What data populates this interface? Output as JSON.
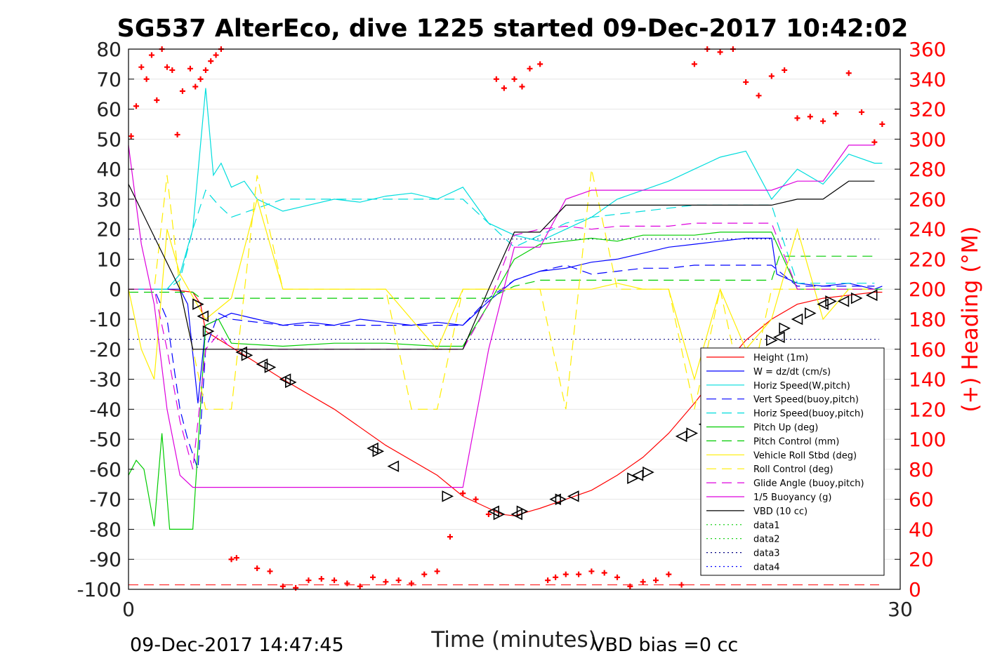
{
  "chart_data": {
    "type": "line",
    "title": "SG537 AlterEco, dive 1225 started 09-Dec-2017 10:42:02",
    "xlabel": "Time (minutes)",
    "ylabel": "",
    "ylabel_right": "(+) Heading (°M)",
    "xlim": [
      0,
      30
    ],
    "ylim": [
      -100,
      80
    ],
    "ylim_right": [
      0,
      360
    ],
    "x_ticks": [
      "0",
      "30"
    ],
    "y_ticks": [
      "80",
      "70",
      "60",
      "50",
      "40",
      "30",
      "20",
      "10",
      "0",
      "-10",
      "-20",
      "-30",
      "-40",
      "-50",
      "-60",
      "-70",
      "-80",
      "-90",
      "-100"
    ],
    "y_ticks_right": [
      "360",
      "340",
      "320",
      "300",
      "280",
      "260",
      "240",
      "220",
      "200",
      "180",
      "160",
      "140",
      "120",
      "100",
      "80",
      "60",
      "40",
      "20",
      "0"
    ],
    "grid": "horizontal",
    "legend_position": "bottom-right",
    "footer_left": "09-Dec-2017 14:47:45",
    "footer_right": "VBD bias =0 cc",
    "reference_lines": [
      16.7,
      -16.7,
      -98.5
    ],
    "series": [
      {
        "name": "Height (1m)",
        "color": "#ff0000",
        "style": "solid",
        "x": [
          0,
          1.5,
          2.5,
          2.8,
          3,
          4.5,
          6,
          8,
          10,
          12,
          13,
          14,
          14.5,
          15,
          16,
          17,
          18,
          19,
          20,
          21,
          22,
          23,
          24,
          25,
          26,
          27,
          28,
          29,
          29.3
        ],
        "y": [
          0,
          0,
          -1,
          -5,
          -14,
          -22,
          -30,
          -40,
          -52,
          -62,
          -69,
          -73,
          -75,
          -75.5,
          -73,
          -70,
          -67,
          -62,
          -56,
          -48,
          -38,
          -27,
          -17,
          -10,
          -5,
          -3,
          -2,
          -1,
          -1
        ]
      },
      {
        "name": "W = dz/dt (cm/s)",
        "color": "#0000ff",
        "style": "solid",
        "x": [
          0,
          1,
          2,
          2.3,
          2.7,
          3,
          3.5,
          4,
          5,
          6,
          7,
          8,
          9,
          10,
          11,
          12,
          13,
          14,
          15,
          16,
          17,
          18,
          19,
          20,
          21,
          22,
          23,
          24,
          25,
          25.2,
          26,
          27,
          28,
          29,
          29.3
        ],
        "y": [
          0,
          0,
          0,
          -5,
          -38,
          -12,
          -10,
          -8,
          -10,
          -12,
          -11,
          -12,
          -10,
          -11,
          -12,
          -11,
          -12,
          -4,
          3,
          6,
          7,
          9,
          10,
          12,
          14,
          15,
          16,
          17,
          17,
          5,
          2,
          1,
          2,
          0,
          1
        ]
      },
      {
        "name": "Horiz Speed(W,pitch)",
        "color": "#00dddd",
        "style": "solid",
        "x": [
          0,
          0.5,
          1,
          1.5,
          2,
          2.5,
          3,
          3.3,
          3.6,
          4,
          4.5,
          5,
          6,
          7,
          8,
          9,
          10,
          11,
          12,
          13,
          14,
          15,
          16,
          17,
          18,
          19,
          20,
          21,
          22,
          23,
          24,
          25,
          26,
          27,
          28,
          29,
          29.3
        ],
        "y": [
          0,
          0,
          0,
          0,
          5,
          20,
          67,
          38,
          42,
          34,
          36,
          30,
          26,
          28,
          30,
          29,
          31,
          32,
          30,
          34,
          22,
          18,
          16,
          20,
          24,
          30,
          33,
          36,
          40,
          44,
          46,
          30,
          40,
          35,
          45,
          42,
          42
        ]
      },
      {
        "name": "Vert Speed(buoy,pitch)",
        "color": "#0000ff",
        "style": "dashed",
        "x": [
          0,
          1,
          1.5,
          2,
          2.3,
          2.7,
          3,
          3.5,
          4,
          6,
          8,
          10,
          12,
          13,
          14,
          15,
          16,
          17,
          18,
          19,
          20,
          21,
          22,
          23,
          24,
          25,
          26,
          27,
          28,
          29
        ],
        "y": [
          0,
          0,
          -10,
          -40,
          -50,
          -60,
          -20,
          -8,
          -10,
          -12,
          -12,
          -12,
          -12,
          -12,
          -3,
          3,
          6,
          8,
          5,
          6,
          7,
          7,
          8,
          8,
          8,
          8,
          1,
          1,
          1,
          1
        ]
      },
      {
        "name": "Horiz Speed(buoy,pitch)",
        "color": "#00dddd",
        "style": "dashed",
        "x": [
          0,
          1,
          1.5,
          2,
          2.5,
          3,
          3.5,
          4,
          6,
          8,
          10,
          12,
          13,
          14,
          15,
          16,
          17,
          18,
          19,
          20,
          21,
          22,
          23,
          24,
          25,
          26,
          27,
          28,
          29
        ],
        "y": [
          0,
          0,
          0,
          3,
          20,
          33,
          28,
          24,
          30,
          30,
          30,
          30,
          30,
          22,
          14,
          18,
          22,
          24,
          25,
          26,
          27,
          28,
          28,
          28,
          28,
          2,
          2,
          2,
          2
        ]
      },
      {
        "name": "Pitch Up (deg)",
        "color": "#00cc00",
        "style": "solid",
        "x": [
          0,
          0.3,
          0.6,
          1,
          1.3,
          1.6,
          2,
          2.5,
          3,
          3.5,
          4,
          6,
          8,
          10,
          12,
          13,
          14,
          15,
          16,
          17,
          18,
          19,
          20,
          21,
          22,
          23,
          24,
          25,
          26,
          27,
          28,
          29,
          29.3
        ],
        "y": [
          -62,
          -57,
          -60,
          -79,
          -48,
          -80,
          -80,
          -80,
          -12,
          -10,
          -18,
          -19,
          -18,
          -18,
          -19,
          -19,
          -5,
          10,
          15,
          16,
          17,
          16,
          18,
          18,
          18,
          19,
          19,
          19,
          0,
          0,
          0,
          0,
          0
        ]
      },
      {
        "name": "Pitch Control (mm)",
        "color": "#00cc00",
        "style": "dashed",
        "x": [
          0,
          2.5,
          2.8,
          3,
          6,
          12,
          14,
          15,
          16,
          20,
          25,
          25.3,
          29
        ],
        "y": [
          -1,
          -1,
          -3,
          -3,
          -3,
          -3,
          -3,
          1,
          3,
          3,
          3,
          11,
          11
        ]
      },
      {
        "name": "Vehicle Roll Stbd (deg)",
        "color": "#ffee00",
        "style": "solid",
        "x": [
          0,
          0.5,
          1,
          1.5,
          2,
          3,
          4,
          5,
          6,
          7,
          8,
          10,
          12,
          13,
          14,
          15,
          16,
          17,
          18,
          19,
          20,
          21,
          22,
          23,
          24,
          25,
          26,
          27,
          28,
          29
        ],
        "y": [
          0,
          -20,
          -30,
          20,
          5,
          -10,
          -3,
          30,
          0,
          0,
          0,
          0,
          -20,
          0,
          0,
          0,
          0,
          0,
          0,
          2,
          0,
          0,
          -30,
          0,
          -20,
          -10,
          20,
          -10,
          0,
          0
        ]
      },
      {
        "name": "Roll Control (deg)",
        "color": "#ffee00",
        "style": "dashed",
        "x": [
          0,
          1,
          1.5,
          2,
          3,
          4,
          5,
          6,
          7,
          8,
          10,
          11,
          12,
          13,
          14,
          15,
          16,
          17,
          18,
          19,
          20,
          21,
          22,
          23,
          24,
          25,
          26,
          27,
          28,
          29
        ],
        "y": [
          0,
          0,
          38,
          0,
          -40,
          -40,
          38,
          0,
          0,
          0,
          0,
          -40,
          -40,
          0,
          0,
          0,
          0,
          -40,
          40,
          0,
          0,
          0,
          -40,
          0,
          -40,
          0,
          0,
          0,
          0,
          0
        ]
      },
      {
        "name": "Glide Angle (buoy,pitch)",
        "color": "#dd00dd",
        "style": "dashed",
        "x": [
          0,
          1,
          1.5,
          2,
          2.5,
          3,
          3.5,
          4,
          6,
          8,
          10,
          12,
          13,
          14,
          15,
          16,
          17,
          18,
          19,
          20,
          21,
          22,
          23,
          24,
          25,
          26,
          27,
          28,
          29
        ],
        "y": [
          0,
          0,
          -20,
          -44,
          -60,
          -20,
          -15,
          -20,
          -20,
          -20,
          -20,
          -20,
          -20,
          -5,
          18,
          20,
          21,
          20,
          21,
          21,
          21,
          22,
          22,
          22,
          22,
          0,
          0,
          0,
          0
        ]
      },
      {
        "name": "1/5 Buoyancy (g)",
        "color": "#dd00dd",
        "style": "solid",
        "x": [
          0,
          0.5,
          1,
          1.5,
          2,
          2.5,
          3,
          4,
          6,
          8,
          10,
          12,
          13,
          14,
          15,
          16,
          17,
          18,
          19,
          20,
          21,
          22,
          23,
          24,
          25,
          26,
          27,
          28,
          29
        ],
        "y": [
          48,
          15,
          -5,
          -40,
          -62,
          -66,
          -66,
          -66,
          -66,
          -66,
          -66,
          -66,
          -66,
          -20,
          14,
          14,
          30,
          33,
          33,
          33,
          33,
          33,
          33,
          33,
          33,
          36,
          36,
          48,
          48
        ]
      },
      {
        "name": "VBD (10 cc)",
        "color": "#000000",
        "style": "solid",
        "x": [
          0,
          2,
          2.5,
          6,
          8,
          10,
          12,
          13,
          14,
          15,
          16,
          17,
          18,
          20,
          22,
          25,
          26,
          27,
          28,
          29
        ],
        "y": [
          35,
          0,
          -20,
          -20,
          -20,
          -20,
          -20,
          -20,
          0,
          19,
          19,
          28,
          28,
          28,
          28,
          28,
          30,
          30,
          36,
          36
        ]
      },
      {
        "name": "data1",
        "color": "#00cc00",
        "style": "dotted",
        "x": [],
        "y": []
      },
      {
        "name": "data2",
        "color": "#00cc00",
        "style": "dotted",
        "x": [],
        "y": []
      },
      {
        "name": "data3",
        "color": "#000080",
        "style": "dotted",
        "x": [],
        "y": []
      },
      {
        "name": "data4",
        "color": "#0000ff",
        "style": "dotted",
        "x": [],
        "y": []
      }
    ],
    "heading_points": {
      "color": "#ff0000",
      "axis": "right",
      "x": [
        0.1,
        0.3,
        0.5,
        0.7,
        0.9,
        1.1,
        1.3,
        1.5,
        1.7,
        1.9,
        2.1,
        2.4,
        2.6,
        2.8,
        3,
        3.2,
        3.4,
        3.6,
        4.0,
        4.2,
        5.0,
        5.5,
        6.0,
        6.5,
        7.0,
        7.5,
        8.0,
        8.5,
        9.0,
        9.5,
        10.0,
        10.5,
        11.0,
        11.5,
        12.0,
        12.5,
        13.0,
        13.5,
        14.0,
        14.3,
        14.6,
        15.0,
        15.3,
        15.6,
        16.0,
        16.3,
        16.6,
        17.0,
        17.5,
        18.0,
        18.5,
        19.0,
        19.5,
        20.0,
        20.5,
        21.0,
        21.5,
        22.0,
        22.5,
        23.0,
        23.5,
        24.0,
        24.5,
        25.0,
        25.5,
        26.0,
        26.5,
        27.0,
        27.5,
        28.0,
        28.5,
        29.0,
        29.3
      ],
      "y": [
        302,
        322,
        348,
        340,
        356,
        326,
        360,
        348,
        346,
        303,
        332,
        347,
        335,
        340,
        346,
        352,
        356,
        360,
        20,
        21,
        14,
        12,
        2,
        1,
        6,
        7,
        6,
        4,
        2,
        8,
        5,
        6,
        4,
        10,
        12,
        35,
        64,
        60,
        50,
        340,
        334,
        340,
        335,
        347,
        350,
        6,
        8,
        10,
        10,
        12,
        11,
        8,
        2,
        5,
        6,
        10,
        3,
        350,
        360,
        358,
        360,
        338,
        329,
        342,
        346,
        314,
        315,
        312,
        317,
        344,
        318,
        298,
        310
      ]
    },
    "markers": {
      "color": "#000000",
      "shape": "triangle",
      "x": [
        2.7,
        2.9,
        3.1,
        4.4,
        4.6,
        5.2,
        5.5,
        6.1,
        6.3,
        9.5,
        9.7,
        10.3,
        12.4,
        14.2,
        14.4,
        15.1,
        15.3,
        16.6,
        16.8,
        17.3,
        19.6,
        19.8,
        20.2,
        21.5,
        21.9,
        22.4,
        22.8,
        23.0,
        23.4,
        23.6,
        24.0,
        24.2,
        25.0,
        25.3,
        25.5,
        26.0,
        26.5,
        27.0,
        27.3,
        27.8,
        28.3,
        28.9
      ],
      "y": [
        -5,
        -9,
        -14,
        -21,
        -22,
        -25,
        -26,
        -30,
        -31,
        -53,
        -54,
        -59,
        -69,
        -74,
        -75,
        -75,
        -74,
        -70,
        -70,
        -69,
        -63,
        -62,
        -61,
        -49,
        -48,
        -45,
        -44,
        -40,
        -38,
        -36,
        -25,
        -22,
        -17,
        -16,
        -13,
        -10,
        -8,
        -5,
        -4,
        -4,
        -3,
        -2
      ]
    }
  }
}
